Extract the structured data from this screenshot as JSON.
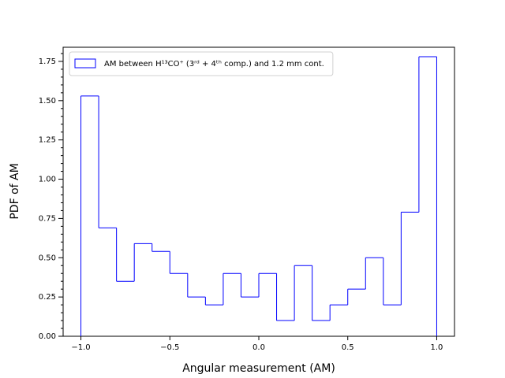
{
  "chart_data": {
    "type": "histogram",
    "xlabel": "Angular measurement (AM)",
    "ylabel": "PDF of AM",
    "bins": [
      -1.0,
      -0.9,
      -0.8,
      -0.7,
      -0.6,
      -0.5,
      -0.4,
      -0.3,
      -0.2,
      -0.1,
      0.0,
      0.1,
      0.2,
      0.3,
      0.4,
      0.5,
      0.6,
      0.7,
      0.8,
      0.9,
      1.0
    ],
    "series": [
      {
        "name": "AM between H¹³CO⁺ (3ʳᵈ + 4ᵗʰ comp.) and 1.2 mm cont.",
        "color": "#0000ff",
        "values": [
          1.53,
          0.69,
          0.35,
          0.59,
          0.54,
          0.4,
          0.25,
          0.2,
          0.4,
          0.25,
          0.4,
          0.1,
          0.45,
          0.1,
          0.2,
          0.3,
          0.5,
          0.2,
          0.79,
          1.78
        ]
      }
    ],
    "xlim": [
      -1.1,
      1.1
    ],
    "ylim": [
      0,
      1.84
    ],
    "xticks": [
      {
        "value": -1.0,
        "label": "−1.0"
      },
      {
        "value": -0.5,
        "label": "−0.5"
      },
      {
        "value": 0.0,
        "label": "0.0"
      },
      {
        "value": 0.5,
        "label": "0.5"
      },
      {
        "value": 1.0,
        "label": "1.0"
      }
    ],
    "yticks": [
      {
        "value": 0,
        "label": "0.00"
      },
      {
        "value": 0.25,
        "label": "0.25"
      },
      {
        "value": 0.5,
        "label": "0.50"
      },
      {
        "value": 0.75,
        "label": "0.75"
      },
      {
        "value": 1.0,
        "label": "1.00"
      },
      {
        "value": 1.25,
        "label": "1.25"
      },
      {
        "value": 1.5,
        "label": "1.50"
      },
      {
        "value": 1.75,
        "label": "1.75"
      }
    ],
    "yminorticks": [
      0.05,
      0.1,
      0.15,
      0.2,
      0.3,
      0.35,
      0.4,
      0.45,
      0.55,
      0.6,
      0.65,
      0.7,
      0.8,
      0.85,
      0.9,
      0.95,
      1.05,
      1.1,
      1.15,
      1.2,
      1.3,
      1.35,
      1.4,
      1.45,
      1.55,
      1.6,
      1.65,
      1.7,
      1.8
    ],
    "legend": "upper left",
    "grid": false
  }
}
